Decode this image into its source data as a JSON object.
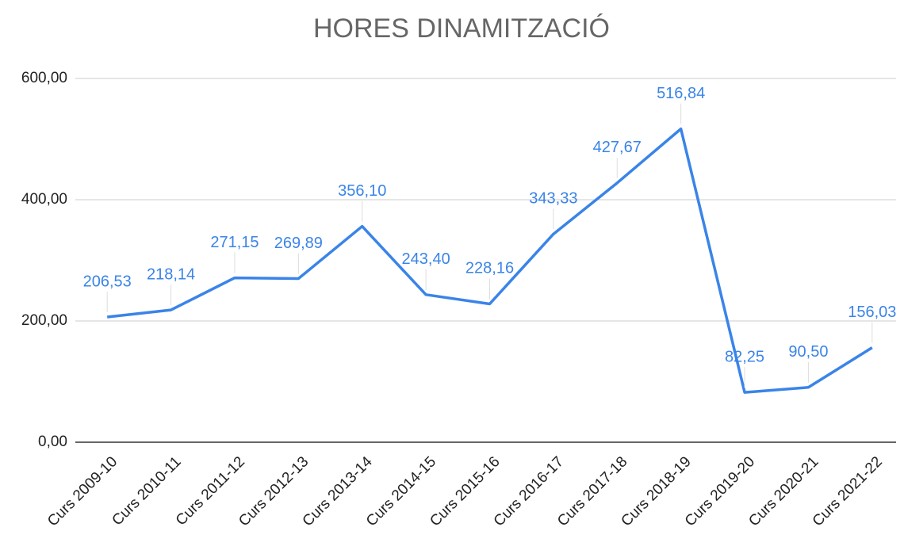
{
  "chart_data": {
    "type": "line",
    "title": "HORES DINAMITZACIÓ",
    "categories": [
      "Curs 2009-10",
      "Curs 2010-11",
      "Curs 2011-12",
      "Curs 2012-13",
      "Curs 2013-14",
      "Curs 2014-15",
      "Curs 2015-16",
      "Curs 2016-17",
      "Curs 2017-18",
      "Curs 2018-19",
      "Curs 2019-20",
      "Curs 2020-21",
      "Curs 2021-22"
    ],
    "values": [
      206.53,
      218.14,
      271.15,
      269.89,
      356.1,
      243.4,
      228.16,
      343.33,
      427.67,
      516.84,
      82.25,
      90.5,
      156.03
    ],
    "value_labels": [
      "206,53",
      "218,14",
      "271,15",
      "269,89",
      "356,10",
      "243,40",
      "228,16",
      "343,33",
      "427,67",
      "516,84",
      "82,25",
      "90,50",
      "156,03"
    ],
    "color": "#3a84e8",
    "ylim": [
      0,
      600
    ],
    "yticks": [
      {
        "value": 0,
        "label": "0,00"
      },
      {
        "value": 200,
        "label": "200,00"
      },
      {
        "value": 400,
        "label": "400,00"
      },
      {
        "value": 600,
        "label": "600,00"
      }
    ],
    "grid": true
  }
}
